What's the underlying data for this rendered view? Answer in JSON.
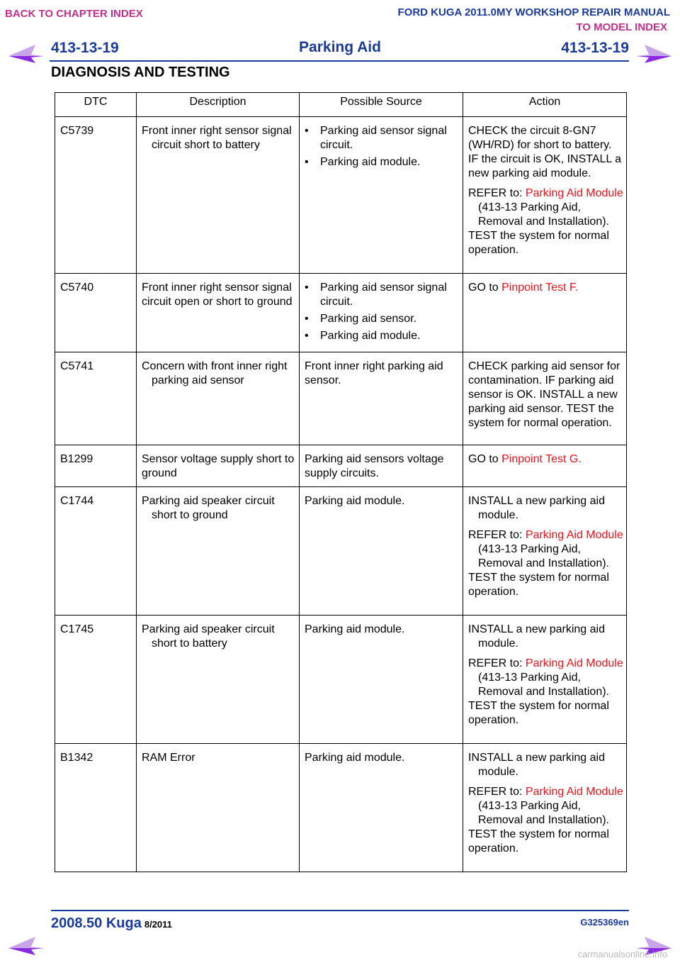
{
  "nav": {
    "back_to_chapter": "BACK TO CHAPTER INDEX",
    "manual_title": "FORD KUGA 2011.0MY WORKSHOP REPAIR MANUAL",
    "to_model_index": "TO MODEL INDEX",
    "arrow_color": "#8a2be2"
  },
  "header": {
    "page_number": "413-13-19",
    "section_title": "Parking Aid",
    "chapter_heading": "DIAGNOSIS AND TESTING"
  },
  "table": {
    "headers": [
      "DTC",
      "Description",
      "Possible Source",
      "Action"
    ],
    "rows": [
      {
        "dtc": "C5739",
        "description": "Front inner right sensor signal circuit short to battery",
        "sources": [
          "Parking aid sensor signal circuit.",
          "Parking aid module."
        ],
        "action_text": "CHECK the circuit 8-GN7 (WH/RD) for short to battery. IF the circuit is OK, INSTALL a new parking aid module.",
        "refer_prefix": "REFER to: ",
        "refer_link": "Parking Aid Module",
        "refer_suffix": " (413-13 Parking Aid, Removal and Installation).",
        "action_end": "TEST the system for normal operation."
      },
      {
        "dtc": "C5740",
        "description": "Front inner right sensor signal circuit open or short to ground",
        "sources": [
          "Parking aid sensor signal circuit.",
          "Parking aid sensor.",
          "Parking aid module."
        ],
        "goto_prefix": "GO to ",
        "goto_link": "Pinpoint Test F."
      },
      {
        "dtc": "C5741",
        "description": "Concern with front inner right parking aid sensor",
        "source_text": "Front inner right parking aid sensor.",
        "action_text": "CHECK parking aid sensor for contamination. IF parking aid sensor is OK. INSTALL a new parking aid sensor. TEST the system for normal operation."
      },
      {
        "dtc": "B1299",
        "description": "Sensor voltage supply short to ground",
        "source_text": "Parking aid sensors voltage supply circuits.",
        "goto_prefix": "GO to ",
        "goto_link": "Pinpoint Test G."
      },
      {
        "dtc": "C1744",
        "description": "Parking aid speaker circuit short to ground",
        "source_text": "Parking aid module.",
        "action_text": "INSTALL a new parking aid module.",
        "refer_prefix": "REFER to: ",
        "refer_link": "Parking Aid Module",
        "refer_suffix": " (413-13 Parking Aid, Removal and Installation).",
        "action_end": "TEST the system for normal operation."
      },
      {
        "dtc": "C1745",
        "description": "Parking aid speaker circuit short to battery",
        "source_text": "Parking aid module.",
        "action_text": "INSTALL a new parking aid module.",
        "refer_prefix": "REFER to: ",
        "refer_link": "Parking Aid Module",
        "refer_suffix": " (413-13 Parking Aid, Removal and Installation).",
        "action_end": "TEST the system for normal operation."
      },
      {
        "dtc": "B1342",
        "description": "RAM Error",
        "source_text": "Parking aid module.",
        "action_text": "INSTALL a new parking aid module.",
        "refer_prefix": "REFER to: ",
        "refer_link": "Parking Aid Module",
        "refer_suffix": " (413-13 Parking Aid, Removal and Installation).",
        "action_end": "TEST the system for normal operation."
      }
    ]
  },
  "footer": {
    "model": "2008.50 Kuga",
    "date": "8/2011",
    "code": "G325369en"
  },
  "watermark": "carmanualsonline.info"
}
